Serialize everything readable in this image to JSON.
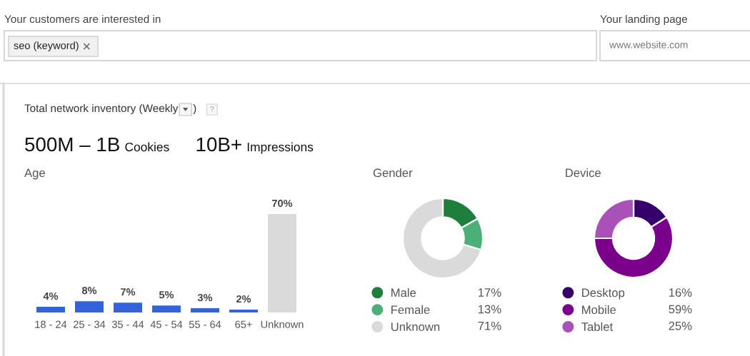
{
  "chart_data": [
    {
      "type": "other",
      "annotations": [
        "Your customers are interested in",
        "seo (keyword)",
        "Your landing page",
        "www.website.com",
        "Total network inventory (Weekly",
        ")",
        "?",
        "500M – 1B",
        "Cookies",
        "10B+",
        "Impressions"
      ]
    },
    {
      "type": "bar",
      "title": "Age",
      "categories": [
        "18 - 24",
        "25 - 34",
        "35 - 44",
        "45 - 54",
        "55 - 64",
        "65+",
        "Unknown"
      ],
      "values": [
        4,
        8,
        7,
        5,
        3,
        2,
        70
      ],
      "colors": [
        "#3263d8",
        "#3263d8",
        "#3263d8",
        "#3263d8",
        "#3263d8",
        "#3263d8",
        "#dadada"
      ],
      "value_labels": [
        "4%",
        "8%",
        "7%",
        "5%",
        "3%",
        "2%",
        "70%"
      ],
      "tick_labels": "x"
    },
    {
      "type": "donut",
      "title": "Gender",
      "categories": [
        "Male",
        "Female",
        "Unknown"
      ],
      "values": [
        17,
        13,
        71
      ],
      "colors": [
        "#1e7e3c",
        "#4caf78",
        "#dadada"
      ],
      "value_labels": [
        "17%",
        "13%",
        "71%"
      ],
      "legend": "bottom"
    },
    {
      "type": "donut",
      "title": "Device",
      "categories": [
        "Desktop",
        "Mobile",
        "Tablet"
      ],
      "values": [
        16,
        59,
        25
      ],
      "colors": [
        "#36006b",
        "#7a008c",
        "#aa50b9"
      ],
      "value_labels": [
        "16%",
        "59%",
        "25%"
      ],
      "legend": "bottom"
    }
  ]
}
